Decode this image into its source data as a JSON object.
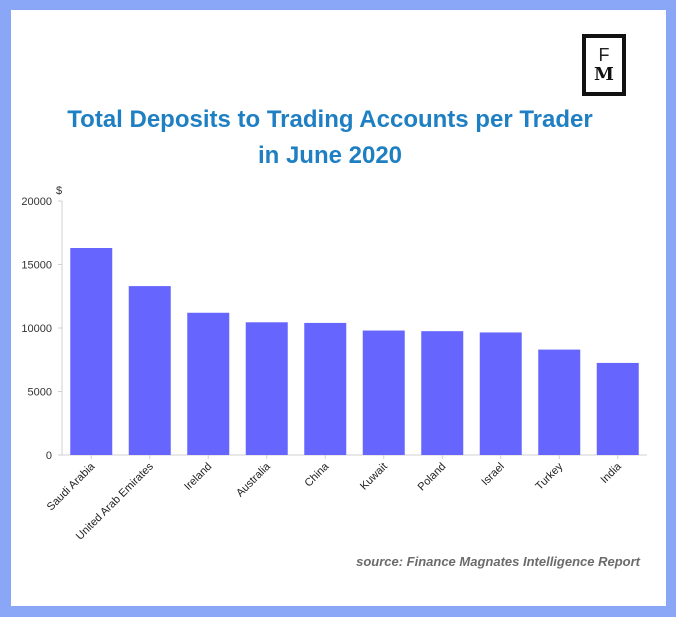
{
  "logo": {
    "line1": "F",
    "line2": "M"
  },
  "source": "source: Finance Magnates Intelligence Report",
  "colors": {
    "bar": "#6666ff",
    "title": "#1e7fc2",
    "frame": "#8aa6f7"
  },
  "chart_data": {
    "type": "bar",
    "title": "Total Deposits to Trading Accounts per Trader in June 2020",
    "xlabel": "",
    "ylabel": "$",
    "ylim": [
      0,
      20000
    ],
    "yticks": [
      "0",
      "5000",
      "10000",
      "15000",
      "20000"
    ],
    "categories": [
      "Saudi Arabia",
      "United Arab Emirates",
      "Ireland",
      "Australia",
      "China",
      "Kuwait",
      "Poland",
      "Israel",
      "Turkey",
      "India"
    ],
    "values": [
      16300,
      13300,
      11200,
      10450,
      10400,
      9800,
      9750,
      9650,
      8300,
      7250
    ],
    "grid": false,
    "legend": "none"
  }
}
